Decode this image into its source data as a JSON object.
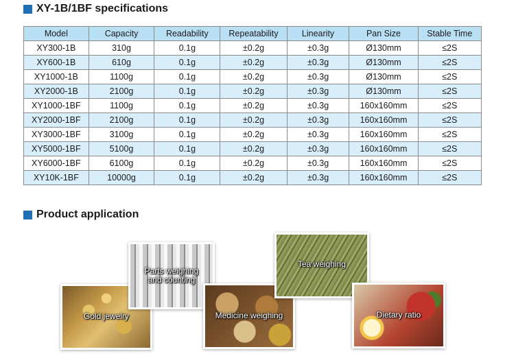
{
  "spec_section": {
    "title": "XY-1B/1BF specifications",
    "headers": [
      "Model",
      "Capacity",
      "Readability",
      "Repeatability",
      "Linearity",
      "Pan Size",
      "Stable Time"
    ],
    "rows": [
      [
        "XY300-1B",
        "310g",
        "0.1g",
        "±0.2g",
        "±0.3g",
        "Ø130mm",
        "≤2S"
      ],
      [
        "XY600-1B",
        "610g",
        "0.1g",
        "±0.2g",
        "±0.3g",
        "Ø130mm",
        "≤2S"
      ],
      [
        "XY1000-1B",
        "1100g",
        "0.1g",
        "±0.2g",
        "±0.3g",
        "Ø130mm",
        "≤2S"
      ],
      [
        "XY2000-1B",
        "2100g",
        "0.1g",
        "±0.2g",
        "±0.3g",
        "Ø130mm",
        "≤2S"
      ],
      [
        "XY1000-1BF",
        "1100g",
        "0.1g",
        "±0.2g",
        "±0.3g",
        "160x160mm",
        "≤2S"
      ],
      [
        "XY2000-1BF",
        "2100g",
        "0.1g",
        "±0.2g",
        "±0.3g",
        "160x160mm",
        "≤2S"
      ],
      [
        "XY3000-1BF",
        "3100g",
        "0.1g",
        "±0.2g",
        "±0.3g",
        "160x160mm",
        "≤2S"
      ],
      [
        "XY5000-1BF",
        "5100g",
        "0.1g",
        "±0.2g",
        "±0.3g",
        "160x160mm",
        "≤2S"
      ],
      [
        "XY6000-1BF",
        "6100g",
        "0.1g",
        "±0.2g",
        "±0.3g",
        "160x160mm",
        "≤2S"
      ],
      [
        "XY10K-1BF",
        "10000g",
        "0.1g",
        "±0.2g",
        "±0.3g",
        "160x160mm",
        "≤2S"
      ]
    ]
  },
  "application_section": {
    "title": "Product application",
    "photos": {
      "gold": "Gold jewelry",
      "parts_line1": "Parts weighing",
      "parts_line2": "and counting",
      "medicine": "Medicine weighing",
      "tea": "Tea weighing",
      "diet": "Dietary ratio"
    }
  },
  "colors": {
    "accent_square": "#1e6fb5",
    "header_row": "#b9dff4",
    "alt_row": "#d9eefb",
    "grid_line": "#8a8a8a"
  }
}
